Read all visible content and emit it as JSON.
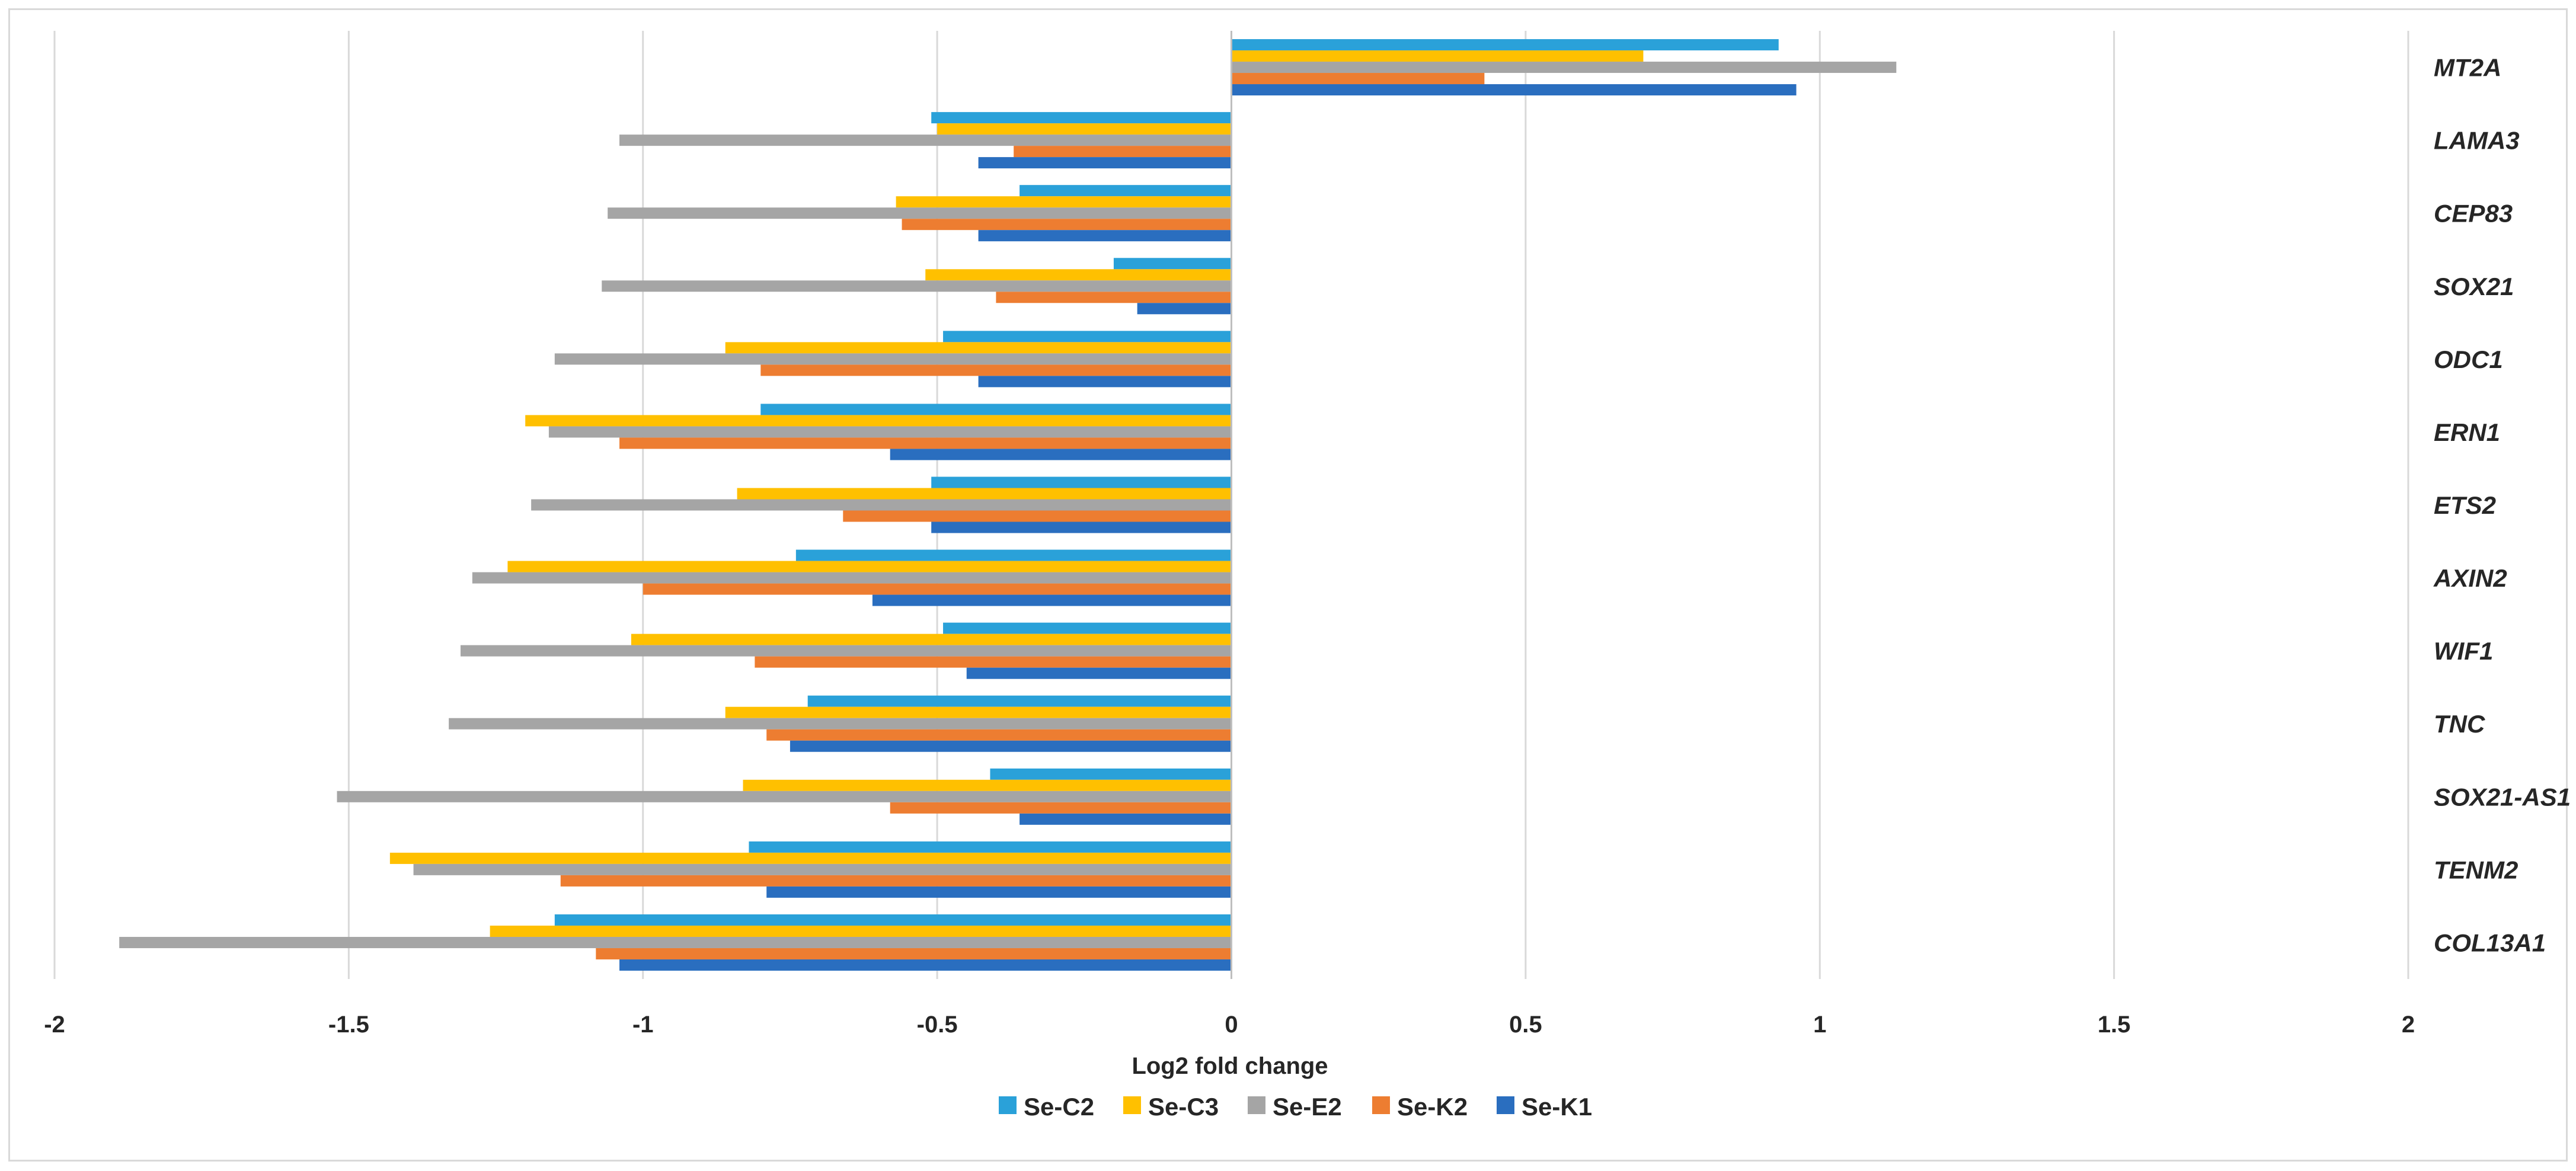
{
  "chart_data": {
    "type": "bar",
    "orientation": "horizontal",
    "title": "",
    "xlabel": "Log2 fold change",
    "ylabel": "",
    "xlim": [
      -2,
      2
    ],
    "xticks": [
      -2,
      -1.5,
      -1,
      -0.5,
      0,
      0.5,
      1,
      1.5,
      2
    ],
    "xtick_labels": [
      "-2",
      "-1.5",
      "-1",
      "-0.5",
      "0",
      "0.5",
      "1",
      "1.5",
      "2"
    ],
    "grid": "vertical",
    "legend_position": "bottom",
    "categories": [
      "MT2A",
      "LAMA3",
      "CEP83",
      "SOX21",
      "ODC1",
      "ERN1",
      "ETS2",
      "AXIN2",
      "WIF1",
      "TNC",
      "SOX21-AS1",
      "TENM2",
      "COL13A1"
    ],
    "series": [
      {
        "name": "Se-C2",
        "color": "#2aa1d9",
        "values": [
          0.93,
          -0.51,
          -0.36,
          -0.2,
          -0.49,
          -0.8,
          -0.51,
          -0.74,
          -0.49,
          -0.72,
          -0.41,
          -0.82,
          -1.15
        ]
      },
      {
        "name": "Se-C3",
        "color": "#ffc000",
        "values": [
          0.7,
          -0.5,
          -0.57,
          -0.52,
          -0.86,
          -1.2,
          -0.84,
          -1.23,
          -1.02,
          -0.86,
          -0.83,
          -1.43,
          -1.26
        ]
      },
      {
        "name": "Se-E2",
        "color": "#a5a5a5",
        "values": [
          1.13,
          -1.04,
          -1.06,
          -1.07,
          -1.15,
          -1.16,
          -1.19,
          -1.29,
          -1.31,
          -1.33,
          -1.52,
          -1.39,
          -1.89
        ]
      },
      {
        "name": "Se-K2",
        "color": "#ed7d31",
        "values": [
          0.43,
          -0.37,
          -0.56,
          -0.4,
          -0.8,
          -1.04,
          -0.66,
          -1.0,
          -0.81,
          -0.79,
          -0.58,
          -1.14,
          -1.08
        ]
      },
      {
        "name": "Se-K1",
        "color": "#2a6ebf",
        "values": [
          0.96,
          -0.43,
          -0.43,
          -0.16,
          -0.43,
          -0.58,
          -0.51,
          -0.61,
          -0.45,
          -0.75,
          -0.36,
          -0.79,
          -1.04
        ]
      }
    ]
  }
}
